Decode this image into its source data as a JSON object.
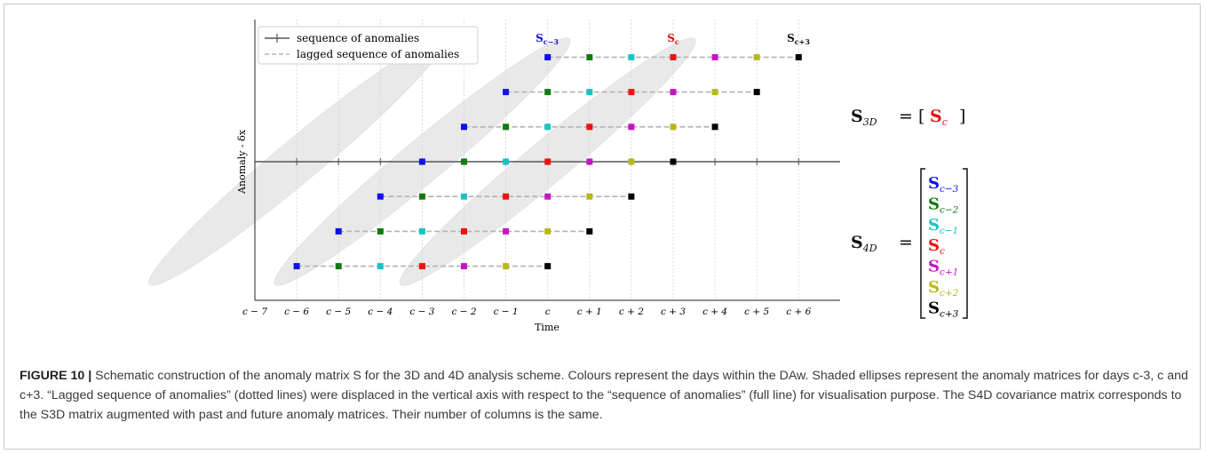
{
  "figure": {
    "x_ticks": [
      "c − 7",
      "c − 6",
      "c − 5",
      "c − 4",
      "c − 3",
      "c − 2",
      "c − 1",
      "c",
      "c + 1",
      "c + 2",
      "c + 3",
      "c + 4",
      "c + 5",
      "c + 6"
    ],
    "xlabel": "Time",
    "ylabel": "Anomaly - δx",
    "legend": {
      "solid": "sequence of anomalies",
      "dashed": "lagged sequence of anomalies"
    },
    "top_labels": [
      {
        "base": "S",
        "sub": "c−3",
        "color": "#1010dd"
      },
      {
        "base": "S",
        "sub": "c",
        "color": "#e01010"
      },
      {
        "base": "S",
        "sub": "c+3",
        "color": "#111111"
      }
    ],
    "colors": {
      "c-3": "#1010ee",
      "c-2": "#127a12",
      "c-1": "#17c4c4",
      "c": "#ee1111",
      "c+1": "#c417c4",
      "c+2": "#b8b81c",
      "c+3": "#000000",
      "dashed_line": "#b4b4b4",
      "solid_line": "#555555",
      "ellipse": "#e9e9e9"
    },
    "rows": [
      {
        "offset": 3,
        "start_time": 0
      },
      {
        "offset": 2,
        "start_time": -1
      },
      {
        "offset": 1,
        "start_time": -2
      },
      {
        "offset": 0,
        "start_time": -3
      },
      {
        "offset": -1,
        "start_time": -4
      },
      {
        "offset": -2,
        "start_time": -5
      },
      {
        "offset": -3,
        "start_time": -6
      }
    ],
    "equation_3d": {
      "lhs": "S",
      "lhs_sub": "3D",
      "item": "S",
      "item_sub": "c"
    },
    "equation_4d": {
      "lhs": "S",
      "lhs_sub": "4D",
      "items": [
        {
          "base": "S",
          "sub": "c−3"
        },
        {
          "base": "S",
          "sub": "c−2"
        },
        {
          "base": "S",
          "sub": "c−1"
        },
        {
          "base": "S",
          "sub": "c"
        },
        {
          "base": "S",
          "sub": "c+1"
        },
        {
          "base": "S",
          "sub": "c+2"
        },
        {
          "base": "S",
          "sub": "c+3"
        }
      ]
    }
  },
  "caption": {
    "label": "FIGURE 10 |",
    "text": " Schematic construction of the anomaly matrix S for the 3D and 4D analysis scheme. Colours represent the days within the DAw. Shaded ellipses represent the anomaly matrices for days c-3, c and c+3. “Lagged sequence of anomalies” (dotted lines) were displaced in the vertical axis with respect to the “sequence of anomalies” (full line) for visualisation purpose. The S4D covariance matrix corresponds to the S3D matrix augmented with past and future anomaly matrices. Their number of columns is the same."
  }
}
